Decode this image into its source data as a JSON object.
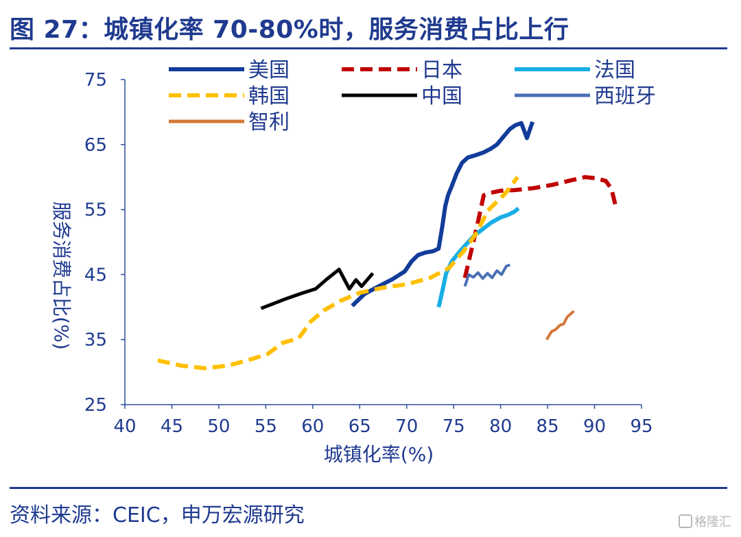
{
  "header": {
    "title": "图 27：城镇化率 70-80%时，服务消费占比上行"
  },
  "footer": {
    "source": "资料来源：CEIC，申万宏源研究",
    "watermark": "格隆汇"
  },
  "chart_data": {
    "type": "line",
    "xlabel": "城镇化率(%)",
    "ylabel": "服务消费占比(%)",
    "xlim": [
      40,
      95
    ],
    "ylim": [
      25,
      75
    ],
    "xticks": [
      40,
      45,
      50,
      55,
      60,
      65,
      70,
      75,
      80,
      85,
      90,
      95
    ],
    "yticks": [
      25,
      35,
      45,
      55,
      65,
      75
    ],
    "grid": false,
    "legend_position": "top",
    "series": [
      {
        "name": "美国",
        "color": "#123c9a",
        "style": "solid",
        "width": 6,
        "x": [
          64.2,
          65.5,
          67,
          68.5,
          69.8,
          70.5,
          71.2,
          72,
          72.8,
          73.4,
          73.8,
          74.1,
          74.4,
          74.8,
          75.3,
          75.9,
          76.5,
          77.4,
          78.2,
          79,
          79.6,
          80.3,
          81,
          81.6,
          82.2,
          82.8,
          83.4
        ],
        "y": [
          40.2,
          42.0,
          43.2,
          44.3,
          45.5,
          47.0,
          48.0,
          48.4,
          48.6,
          49.0,
          52.5,
          55.5,
          57.2,
          58.6,
          60.5,
          62.2,
          63.0,
          63.4,
          63.8,
          64.4,
          65.0,
          66.2,
          67.4,
          68.0,
          68.3,
          66.0,
          68.5
        ]
      },
      {
        "name": "日本",
        "color": "#c00000",
        "style": "dashed",
        "width": 6,
        "x": [
          76.2,
          76.8,
          77.5,
          78.2,
          79,
          80,
          81.5,
          83.5,
          85.5,
          87.5,
          89,
          90.2,
          91.2,
          91.8,
          92.2
        ],
        "y": [
          44.5,
          48.2,
          52.5,
          57.2,
          57.6,
          57.9,
          58.0,
          58.3,
          58.8,
          59.5,
          60.0,
          59.8,
          59.4,
          58.2,
          55.8
        ]
      },
      {
        "name": "法国",
        "color": "#19aee6",
        "style": "solid",
        "width": 6,
        "x": [
          73.4,
          73.8,
          74.2,
          74.8,
          75.5,
          76.3,
          77.2,
          78.1,
          79,
          80,
          80.8,
          81.5,
          81.9
        ],
        "y": [
          40.0,
          42.5,
          45.2,
          47.0,
          48.3,
          49.6,
          51.0,
          52.0,
          53.0,
          53.8,
          54.2,
          54.7,
          55.2
        ]
      },
      {
        "name": "韩国",
        "color": "#ffc000",
        "style": "dashed",
        "width": 6,
        "x": [
          43.5,
          46,
          48.5,
          51,
          53.5,
          55.2,
          56.8,
          58.5,
          59.8,
          61.2,
          63,
          65,
          67.5,
          70,
          72.5,
          74.5,
          76,
          77.5,
          78.6,
          79.6,
          80.5,
          81.2,
          81.8
        ],
        "y": [
          31.8,
          31.0,
          30.6,
          31.0,
          32.0,
          32.8,
          34.5,
          35.2,
          37.8,
          39.5,
          41.0,
          42.2,
          43.0,
          43.5,
          44.5,
          46.0,
          48.5,
          51.5,
          54.8,
          56.2,
          57.5,
          58.8,
          60.0
        ]
      },
      {
        "name": "中国",
        "color": "#000000",
        "style": "solid",
        "width": 5,
        "x": [
          54.5,
          57,
          59,
          60.3,
          61.5,
          62.8,
          63.9,
          64.6,
          65.2,
          65.8,
          66.4
        ],
        "y": [
          39.8,
          41.2,
          42.2,
          42.8,
          44.3,
          45.8,
          42.8,
          44.2,
          43.2,
          44.2,
          45.2
        ]
      },
      {
        "name": "西班牙",
        "color": "#4a6fb5",
        "style": "solid",
        "width": 4,
        "x": [
          76.2,
          76.6,
          77.1,
          77.6,
          78.1,
          78.6,
          79.1,
          79.6,
          80.1,
          80.6,
          81
        ],
        "y": [
          43.2,
          45.0,
          44.6,
          45.3,
          44.4,
          45.2,
          44.5,
          45.6,
          45.0,
          46.3,
          46.5
        ]
      },
      {
        "name": "智利",
        "color": "#d4783a",
        "style": "solid",
        "width": 4,
        "x": [
          84.9,
          85.4,
          85.9,
          86.3,
          86.7,
          87.1,
          87.5,
          87.8
        ],
        "y": [
          35.0,
          36.2,
          36.6,
          37.2,
          37.4,
          38.5,
          39.0,
          39.4
        ]
      }
    ]
  }
}
